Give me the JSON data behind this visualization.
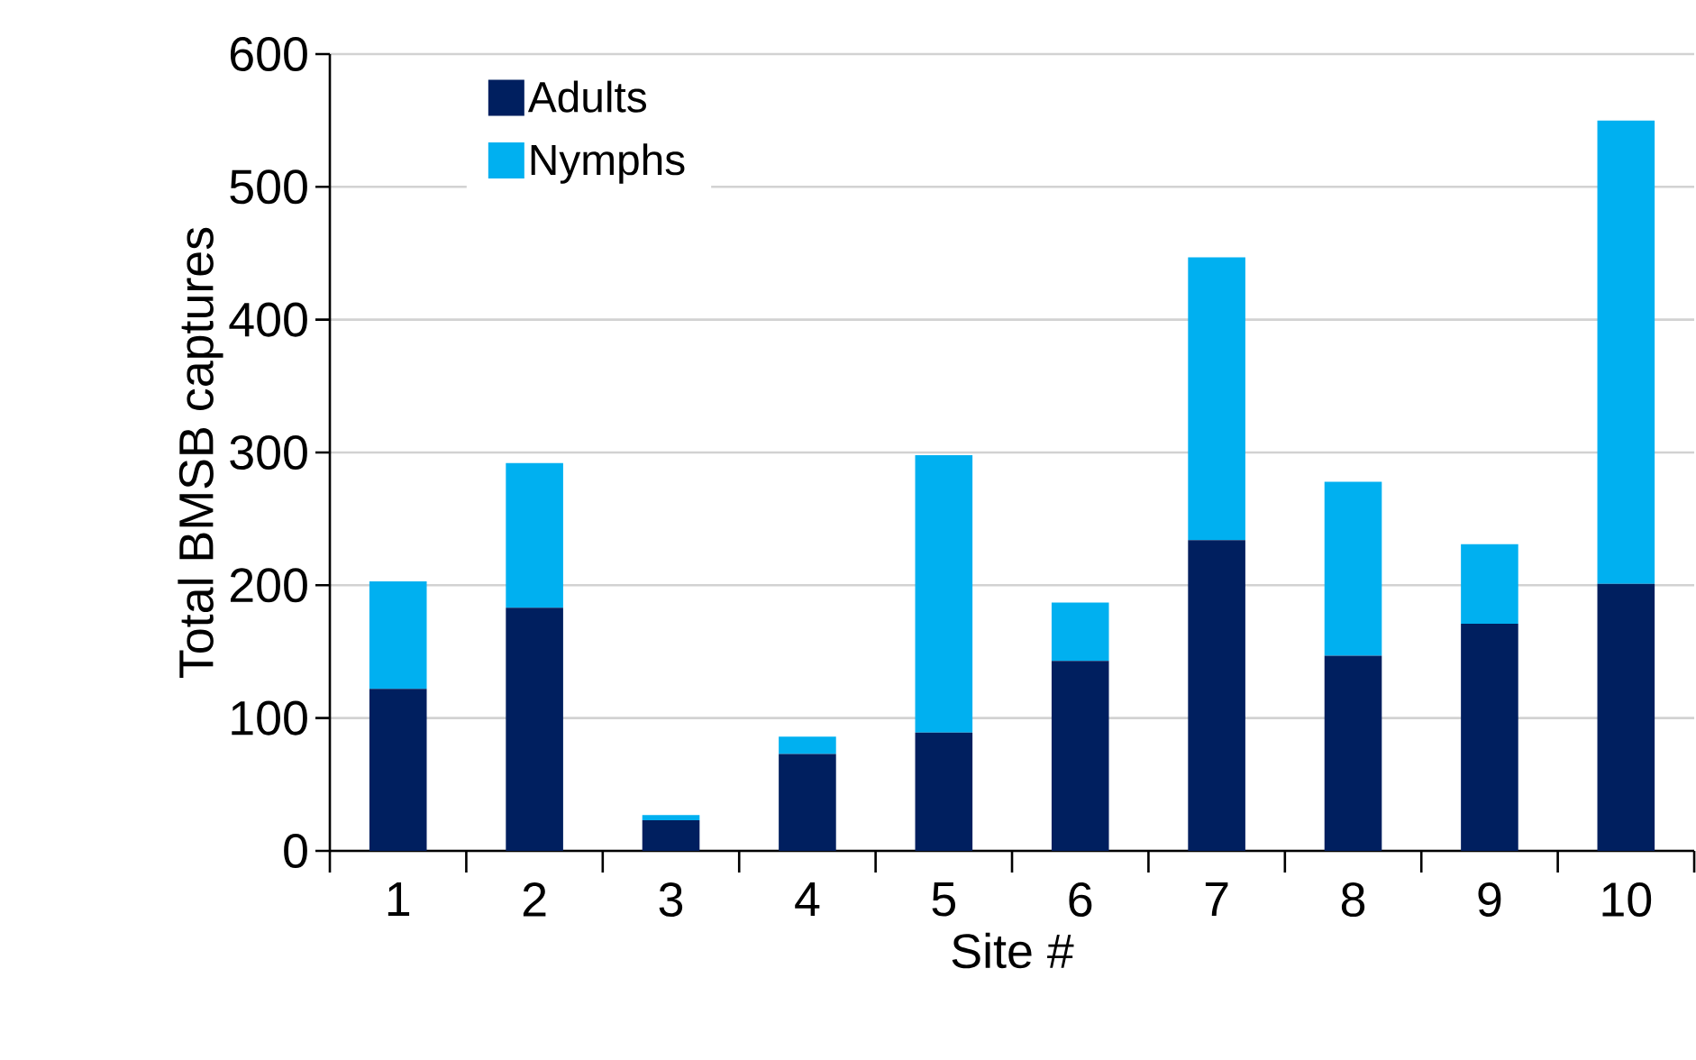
{
  "chart_data": {
    "type": "bar",
    "stacked": true,
    "xlabel": "Site #",
    "ylabel": "Total BMSB captures",
    "categories": [
      "1",
      "2",
      "3",
      "4",
      "5",
      "6",
      "7",
      "8",
      "9",
      "10"
    ],
    "series": [
      {
        "name": "Adults",
        "color": "#001f5f",
        "values": [
          122,
          183,
          23,
          73,
          89,
          143,
          234,
          147,
          171,
          201
        ]
      },
      {
        "name": "Nymphs",
        "color": "#00b0f0",
        "values": [
          81,
          109,
          4,
          13,
          209,
          44,
          213,
          131,
          60,
          349
        ]
      }
    ],
    "ylim": [
      0,
      600
    ],
    "yticks": [
      0,
      100,
      200,
      300,
      400,
      500,
      600
    ],
    "grid": "y",
    "legend": "top left"
  }
}
